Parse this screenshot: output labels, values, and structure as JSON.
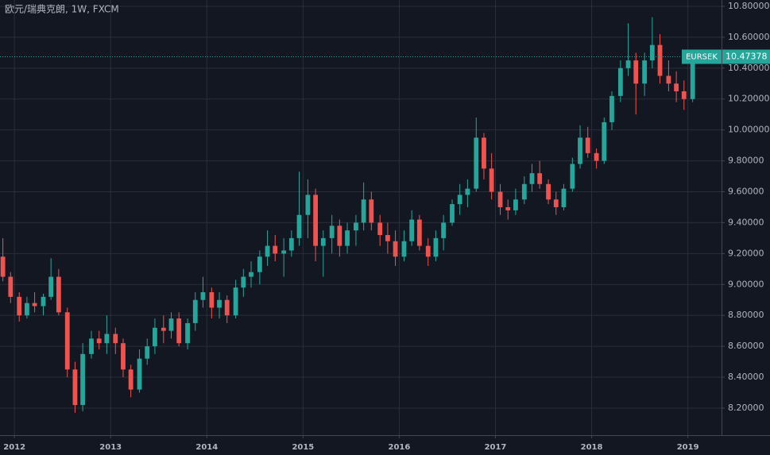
{
  "chart_data": {
    "type": "candlestick",
    "title": "欧元/瑞典克朗, 1W, FXCM",
    "symbol_label": "EURSEK",
    "last_price": 10.47378,
    "last_price_label": "10.47378",
    "up_color": "#26a69a",
    "down_color": "#ef5350",
    "grid": true,
    "xlim": [
      2011.85,
      2019.35
    ],
    "xticks": [
      2012,
      2013,
      2014,
      2015,
      2016,
      2017,
      2018,
      2019
    ],
    "ylim": [
      8.025,
      10.841
    ],
    "yticks": [
      {
        "value": 8.2,
        "label": "8.20000"
      },
      {
        "value": 8.4,
        "label": "8.40000"
      },
      {
        "value": 8.6,
        "label": "8.60000"
      },
      {
        "value": 8.8,
        "label": "8.80000"
      },
      {
        "value": 9.0,
        "label": "9.00000"
      },
      {
        "value": 9.2,
        "label": "9.20000"
      },
      {
        "value": 9.4,
        "label": "9.40000"
      },
      {
        "value": 9.6,
        "label": "9.60000"
      },
      {
        "value": 9.8,
        "label": "9.80000"
      },
      {
        "value": 10.0,
        "label": "10.00000"
      },
      {
        "value": 10.2,
        "label": "10.20000"
      },
      {
        "value": 10.4,
        "label": "10.40000"
      },
      {
        "value": 10.6,
        "label": "10.60000"
      },
      {
        "value": 10.8,
        "label": "10.80000"
      }
    ],
    "x": [
      2011.88,
      2011.96,
      2012.05,
      2012.13,
      2012.21,
      2012.3,
      2012.38,
      2012.46,
      2012.55,
      2012.63,
      2012.71,
      2012.8,
      2012.88,
      2012.96,
      2013.05,
      2013.13,
      2013.21,
      2013.3,
      2013.38,
      2013.46,
      2013.55,
      2013.63,
      2013.71,
      2013.8,
      2013.88,
      2013.96,
      2014.05,
      2014.13,
      2014.21,
      2014.3,
      2014.38,
      2014.46,
      2014.55,
      2014.63,
      2014.71,
      2014.8,
      2014.88,
      2014.96,
      2015.05,
      2015.13,
      2015.21,
      2015.3,
      2015.38,
      2015.46,
      2015.55,
      2015.63,
      2015.71,
      2015.8,
      2015.88,
      2015.96,
      2016.05,
      2016.13,
      2016.21,
      2016.3,
      2016.38,
      2016.46,
      2016.55,
      2016.63,
      2016.71,
      2016.8,
      2016.88,
      2016.96,
      2017.05,
      2017.13,
      2017.21,
      2017.3,
      2017.38,
      2017.46,
      2017.55,
      2017.63,
      2017.71,
      2017.8,
      2017.88,
      2017.96,
      2018.05,
      2018.13,
      2018.21,
      2018.3,
      2018.38,
      2018.46,
      2018.55,
      2018.63,
      2018.71,
      2018.8,
      2018.88,
      2018.96,
      2019.05
    ],
    "open": [
      9.18,
      9.05,
      8.92,
      8.8,
      8.88,
      8.86,
      8.92,
      9.05,
      8.82,
      8.45,
      8.22,
      8.55,
      8.65,
      8.62,
      8.68,
      8.62,
      8.45,
      8.32,
      8.52,
      8.6,
      8.72,
      8.7,
      8.78,
      8.62,
      8.75,
      8.9,
      8.95,
      8.85,
      8.9,
      8.8,
      8.98,
      9.05,
      9.08,
      9.18,
      9.25,
      9.2,
      9.22,
      9.3,
      9.45,
      9.58,
      9.25,
      9.3,
      9.38,
      9.25,
      9.35,
      9.4,
      9.55,
      9.4,
      9.32,
      9.28,
      9.18,
      9.28,
      9.42,
      9.25,
      9.18,
      9.3,
      9.4,
      9.52,
      9.58,
      9.62,
      9.95,
      9.75,
      9.6,
      9.5,
      9.48,
      9.55,
      9.65,
      9.72,
      9.65,
      9.55,
      9.5,
      9.62,
      9.78,
      9.95,
      9.85,
      9.8,
      10.05,
      10.22,
      10.4,
      10.45,
      10.3,
      10.45,
      10.55,
      10.35,
      10.3,
      10.25,
      10.2
    ],
    "high": [
      9.3,
      9.08,
      8.95,
      8.92,
      8.95,
      8.94,
      9.17,
      9.1,
      8.85,
      8.5,
      8.62,
      8.7,
      8.7,
      8.8,
      8.72,
      8.65,
      8.48,
      8.58,
      8.65,
      8.78,
      8.8,
      8.82,
      8.82,
      8.78,
      8.95,
      9.05,
      8.98,
      8.95,
      8.93,
      9.03,
      9.1,
      9.15,
      9.22,
      9.35,
      9.32,
      9.3,
      9.35,
      9.73,
      9.68,
      9.62,
      9.35,
      9.45,
      9.42,
      9.4,
      9.45,
      9.66,
      9.6,
      9.45,
      9.4,
      9.35,
      9.35,
      9.48,
      9.45,
      9.3,
      9.35,
      9.45,
      9.55,
      9.65,
      9.68,
      10.08,
      9.98,
      9.85,
      9.65,
      9.55,
      9.62,
      9.7,
      9.78,
      9.8,
      9.68,
      9.6,
      9.65,
      9.82,
      10.03,
      10.02,
      9.88,
      10.08,
      10.25,
      10.45,
      10.69,
      10.5,
      10.5,
      10.73,
      10.62,
      10.45,
      10.38,
      10.32,
      10.48
    ],
    "low": [
      9.02,
      8.88,
      8.76,
      8.78,
      8.82,
      8.8,
      8.9,
      8.8,
      8.4,
      8.17,
      8.18,
      8.52,
      8.58,
      8.55,
      8.55,
      8.4,
      8.27,
      8.3,
      8.48,
      8.55,
      8.62,
      8.65,
      8.6,
      8.58,
      8.7,
      8.85,
      8.78,
      8.78,
      8.75,
      8.78,
      8.92,
      8.98,
      9.0,
      9.12,
      9.15,
      9.05,
      9.18,
      9.25,
      9.3,
      9.15,
      9.05,
      9.2,
      9.18,
      9.2,
      9.25,
      9.35,
      9.35,
      9.25,
      9.2,
      9.12,
      9.15,
      9.25,
      9.22,
      9.12,
      9.15,
      9.22,
      9.38,
      9.45,
      9.5,
      9.6,
      9.68,
      9.55,
      9.45,
      9.42,
      9.45,
      9.52,
      9.6,
      9.62,
      9.52,
      9.45,
      9.48,
      9.6,
      9.75,
      9.82,
      9.75,
      9.78,
      10.0,
      10.18,
      10.35,
      10.1,
      10.22,
      10.4,
      10.3,
      10.25,
      10.18,
      10.13,
      10.18
    ],
    "close": [
      9.05,
      8.92,
      8.8,
      8.88,
      8.86,
      8.92,
      9.05,
      8.82,
      8.45,
      8.22,
      8.55,
      8.65,
      8.62,
      8.68,
      8.62,
      8.45,
      8.32,
      8.52,
      8.6,
      8.72,
      8.7,
      8.78,
      8.62,
      8.75,
      8.9,
      8.95,
      8.85,
      8.9,
      8.8,
      8.98,
      9.05,
      9.08,
      9.18,
      9.25,
      9.2,
      9.22,
      9.3,
      9.45,
      9.58,
      9.25,
      9.3,
      9.38,
      9.25,
      9.35,
      9.4,
      9.55,
      9.4,
      9.32,
      9.28,
      9.18,
      9.28,
      9.42,
      9.25,
      9.18,
      9.3,
      9.4,
      9.52,
      9.58,
      9.62,
      9.95,
      9.75,
      9.6,
      9.5,
      9.48,
      9.55,
      9.65,
      9.72,
      9.65,
      9.55,
      9.5,
      9.62,
      9.78,
      9.95,
      9.85,
      9.8,
      10.05,
      10.22,
      10.4,
      10.45,
      10.3,
      10.45,
      10.55,
      10.35,
      10.3,
      10.25,
      10.2,
      10.47
    ]
  }
}
